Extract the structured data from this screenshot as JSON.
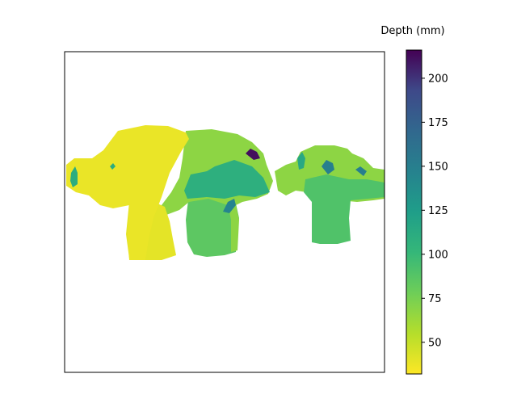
{
  "chart_data": {
    "type": "heatmap",
    "title": "",
    "xlabel": "",
    "ylabel": "",
    "colormap": "viridis_r",
    "colorbar": {
      "label": "Depth (mm)",
      "vmin": 32,
      "vmax": 216,
      "ticks": [
        50,
        75,
        100,
        125,
        150,
        175,
        200
      ],
      "tick_labels": [
        "50",
        "75",
        "100",
        "125",
        "150",
        "175",
        "200"
      ]
    },
    "regions": [
      {
        "name": "large-monkey-face",
        "depth": 38
      },
      {
        "name": "large-monkey-body",
        "depth": 40
      },
      {
        "name": "large-monkey-left-ear-patch",
        "depth": 110
      },
      {
        "name": "large-monkey-eye-dot",
        "depth": 110
      },
      {
        "name": "middle-monkey-upper",
        "depth": 68
      },
      {
        "name": "middle-monkey-lower",
        "depth": 85
      },
      {
        "name": "middle-monkey-teal",
        "depth": 108
      },
      {
        "name": "middle-monkey-dark-spot-left",
        "depth": 145
      },
      {
        "name": "middle-monkey-dark-spot-top",
        "depth": 212
      },
      {
        "name": "small-monkey-head",
        "depth": 68
      },
      {
        "name": "small-monkey-face",
        "depth": 90
      },
      {
        "name": "small-monkey-eye-left",
        "depth": 150
      },
      {
        "name": "small-monkey-eye-right",
        "depth": 150
      },
      {
        "name": "small-monkey-ear-patch",
        "depth": 115
      }
    ],
    "xticks": false,
    "yticks": false,
    "grid": false
  },
  "colors": {
    "background": "#ffffff",
    "frame": "#000000"
  }
}
